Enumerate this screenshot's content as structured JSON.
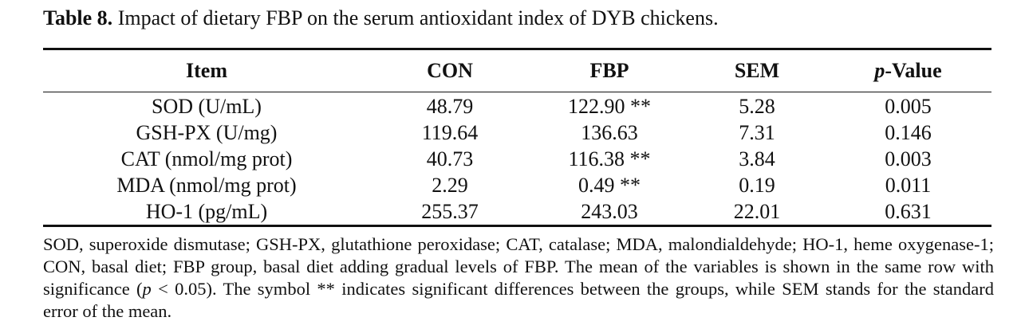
{
  "caption": {
    "label": "Table 8.",
    "text": " Impact of dietary FBP on the serum antioxidant index of DYB chickens."
  },
  "table": {
    "headers": [
      "Item",
      "CON",
      "FBP",
      "SEM",
      "-Value"
    ],
    "header_p": "p",
    "rows": [
      [
        "SOD (U/mL)",
        "48.79",
        "122.90 **",
        "5.28",
        "0.005"
      ],
      [
        "GSH-PX (U/mg)",
        "119.64",
        "136.63",
        "7.31",
        "0.146"
      ],
      [
        "CAT (nmol/mg prot)",
        "40.73",
        "116.38 **",
        "3.84",
        "0.003"
      ],
      [
        "MDA (nmol/mg prot)",
        "2.29",
        "0.49 **",
        "0.19",
        "0.011"
      ],
      [
        "HO-1 (pg/mL)",
        "255.37",
        "243.03",
        "22.01",
        "0.631"
      ]
    ]
  },
  "footnote": {
    "part1": "SOD, superoxide dismutase; GSH-PX, glutathione peroxidase; CAT, catalase; MDA, malondialdehyde; HO-1, heme oxygenase-1; CON, basal diet; FBP group, basal diet adding gradual levels of FBP. The mean of the variables is shown in the same row with significance (",
    "p": "p",
    "part2": " < 0.05). The symbol ** indicates significant differences between the groups, while SEM stands for the standard error of the mean."
  }
}
